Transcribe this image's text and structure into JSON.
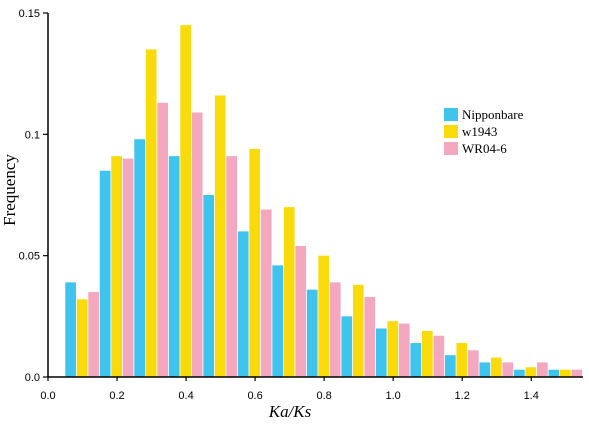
{
  "chart_data": {
    "type": "bar",
    "xlabel": "Ka/Ks",
    "ylabel": "Frequency",
    "x": [
      0.1,
      0.2,
      0.3,
      0.4,
      0.5,
      0.6,
      0.7,
      0.8,
      0.9,
      1.0,
      1.1,
      1.2,
      1.3,
      1.4,
      1.5
    ],
    "xlim": [
      0.0,
      1.55
    ],
    "ylim": [
      0.0,
      0.15
    ],
    "xticks": [
      "0.0",
      "0.2",
      "0.4",
      "0.6",
      "0.8",
      "1.0",
      "1.2",
      "1.4"
    ],
    "yticks": [
      "0.0",
      "0.05",
      "0.1",
      "0.15"
    ],
    "series": [
      {
        "name": "Nipponbare",
        "color": "#3FC4EE",
        "values": [
          0.039,
          0.085,
          0.098,
          0.091,
          0.075,
          0.06,
          0.046,
          0.036,
          0.025,
          0.02,
          0.014,
          0.009,
          0.006,
          0.003,
          0.003
        ]
      },
      {
        "name": "w1943",
        "color": "#F9DA0A",
        "values": [
          0.032,
          0.091,
          0.135,
          0.145,
          0.116,
          0.094,
          0.07,
          0.05,
          0.038,
          0.023,
          0.019,
          0.014,
          0.008,
          0.004,
          0.003
        ]
      },
      {
        "name": "WR04-6",
        "color": "#F3A8C0",
        "values": [
          0.035,
          0.09,
          0.113,
          0.109,
          0.091,
          0.069,
          0.054,
          0.039,
          0.033,
          0.022,
          0.017,
          0.011,
          0.006,
          0.006,
          0.003
        ]
      }
    ],
    "legend": "right"
  }
}
